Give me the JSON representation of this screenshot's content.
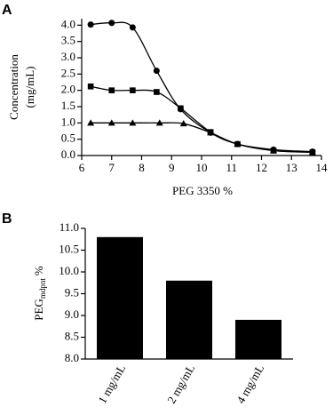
{
  "chart_data": [
    {
      "type": "line",
      "panel": "A",
      "x_label": "PEG 3350 %",
      "y_label": [
        "Concentration",
        "(mg/mL)"
      ],
      "xlim": [
        6,
        14
      ],
      "xticks": [
        6,
        7,
        8,
        9,
        10,
        11,
        12,
        13,
        14
      ],
      "ylim": [
        0,
        4.2
      ],
      "yticks": [
        {
          "value": 0,
          "label": "0.0"
        },
        {
          "value": 0.5,
          "label": "0.5"
        },
        {
          "value": 1,
          "label": "1.0"
        },
        {
          "value": 1.5,
          "label": "1.5"
        },
        {
          "value": 2,
          "label": "2.0"
        },
        {
          "value": 2.5,
          "label": "2.5"
        },
        {
          "value": 3,
          "label": "3.0"
        },
        {
          "value": 3.5,
          "label": "3.5"
        },
        {
          "value": 4,
          "label": "4.0"
        }
      ],
      "series": [
        {
          "marker": "circle",
          "color": "#000000",
          "x": [
            6.3,
            7.0,
            7.7,
            8.5,
            9.3,
            10.3,
            11.2,
            12.4,
            13.7
          ],
          "values": [
            4.02,
            4.07,
            3.93,
            2.6,
            1.42,
            0.7,
            0.35,
            0.18,
            0.12
          ]
        },
        {
          "marker": "square",
          "color": "#000000",
          "x": [
            6.3,
            7.0,
            7.7,
            8.5,
            9.3,
            10.3,
            11.2,
            12.4,
            13.7
          ],
          "values": [
            2.12,
            2.0,
            2.0,
            1.95,
            1.45,
            0.72,
            0.35,
            0.15,
            0.1
          ]
        },
        {
          "marker": "triangle",
          "color": "#000000",
          "x": [
            6.3,
            7.0,
            7.7,
            8.6,
            9.4,
            10.3,
            11.2,
            12.4,
            13.7
          ],
          "values": [
            1.0,
            1.0,
            1.0,
            1.0,
            0.98,
            0.7,
            0.35,
            0.15,
            0.1
          ]
        }
      ]
    },
    {
      "type": "bar",
      "panel": "B",
      "y_label": {
        "main": "PEG",
        "sub": "mdpnt",
        "unit": "%"
      },
      "categories": [
        "1 mg/mL",
        "2 mg/mL",
        "4 mg/mL"
      ],
      "values": [
        10.8,
        9.8,
        8.9
      ],
      "color": "#000000",
      "ylim": [
        8.0,
        11.0
      ],
      "yticks": [
        {
          "value": 8,
          "label": "8.0"
        },
        {
          "value": 8.5,
          "label": "8.5"
        },
        {
          "value": 9,
          "label": "9.0"
        },
        {
          "value": 9.5,
          "label": "9.5"
        },
        {
          "value": 10,
          "label": "10.0"
        },
        {
          "value": 10.5,
          "label": "10.5"
        },
        {
          "value": 11,
          "label": "11.0"
        }
      ]
    }
  ]
}
